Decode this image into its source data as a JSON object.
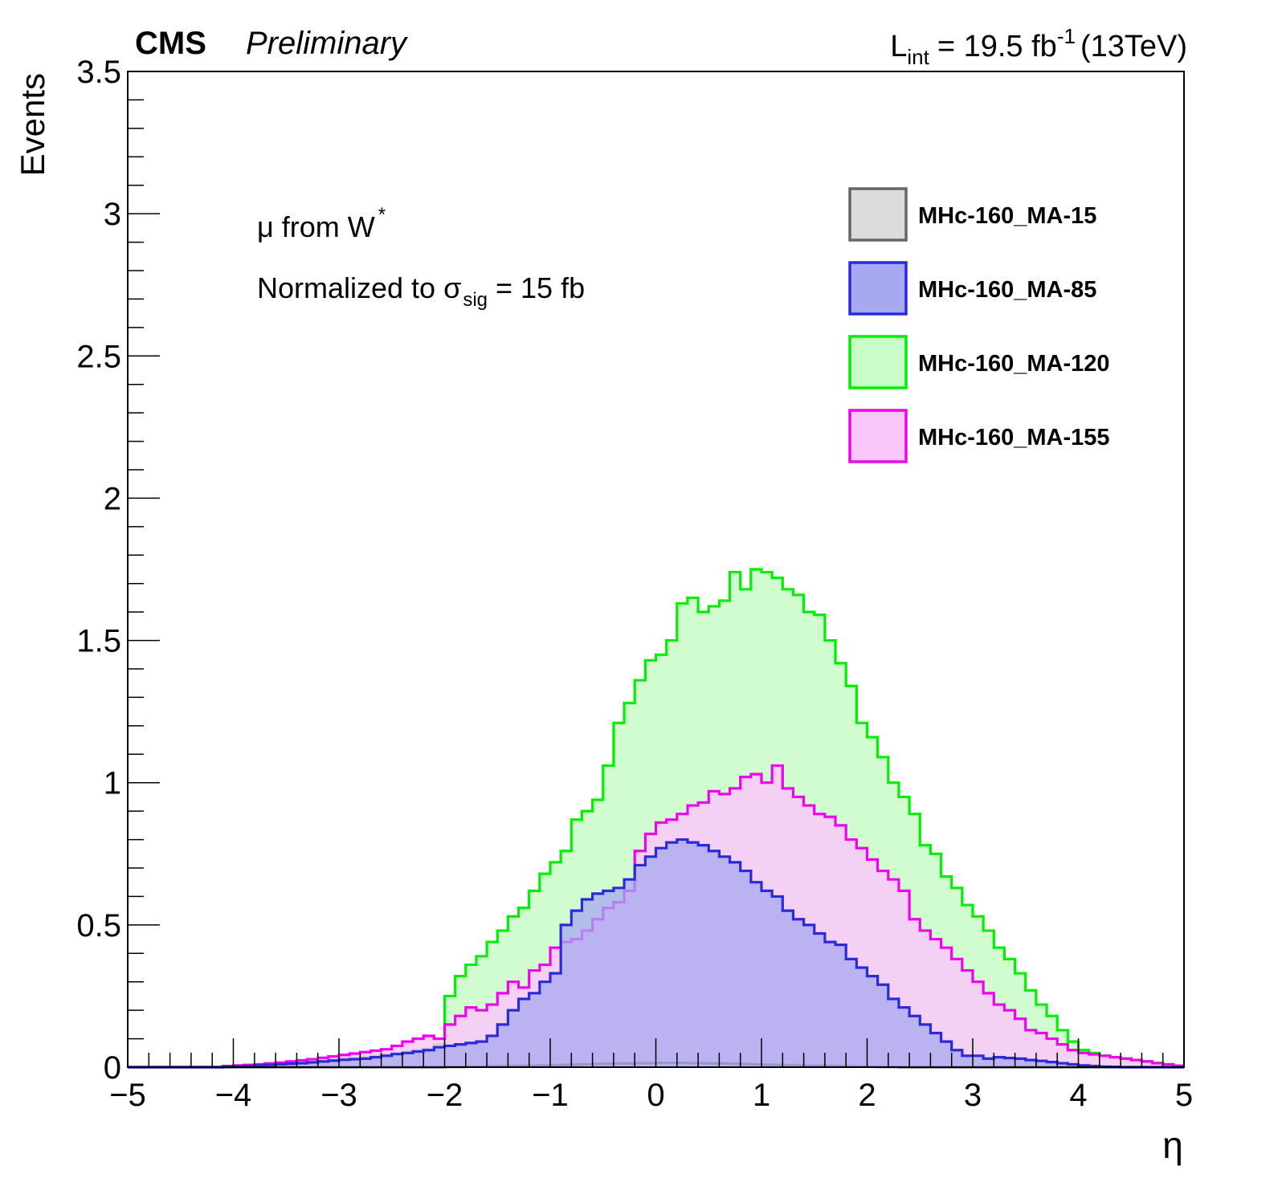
{
  "header": {
    "experiment": "CMS",
    "status": "Preliminary",
    "lumi_symbol": "L",
    "lumi_sub": "int",
    "lumi_value": "= 19.5 fb",
    "lumi_exp": "-1",
    "energy": "(13TeV)"
  },
  "annotations": {
    "line1_main": "μ from W",
    "line1_sup": "*",
    "line2_main": "Normalized to σ",
    "line2_sub": "sig",
    "line2_tail": "= 15 fb"
  },
  "chart_data": {
    "type": "histogram",
    "xlabel": "η",
    "ylabel": "Events",
    "xlim": [
      -5,
      5
    ],
    "ylim": [
      0,
      3.5
    ],
    "x_ticks": [
      -5,
      -4,
      -3,
      -2,
      -1,
      0,
      1,
      2,
      3,
      4,
      5
    ],
    "x_tick_labels": [
      "−5",
      "−4",
      "−3",
      "−2",
      "−1",
      "0",
      "1",
      "2",
      "3",
      "4",
      "5"
    ],
    "y_ticks": [
      0,
      0.5,
      1,
      1.5,
      2,
      2.5,
      3,
      3.5
    ],
    "y_tick_labels": [
      "0",
      "0.5",
      "1",
      "1.5",
      "2",
      "2.5",
      "3",
      "3.5"
    ],
    "bin_width": 0.1,
    "legend_position": "top-right",
    "series": [
      {
        "name": "MHc-160_MA-15",
        "line_color": "#666666",
        "fill_color": "#dcdcdc",
        "values": [
          0,
          0,
          0,
          0,
          0,
          0,
          0,
          0,
          0,
          0,
          0,
          0,
          0,
          0,
          0,
          0,
          0,
          0,
          0,
          0,
          0,
          0,
          0,
          0,
          0,
          0,
          0,
          0,
          0,
          0,
          0.001,
          0.001,
          0.002,
          0.002,
          0.003,
          0.004,
          0.004,
          0.005,
          0.005,
          0.006,
          0.007,
          0.008,
          0.009,
          0.01,
          0.011,
          0.012,
          0.013,
          0.013,
          0.014,
          0.014,
          0.015,
          0.015,
          0.015,
          0.014,
          0.014,
          0.013,
          0.013,
          0.012,
          0.011,
          0.01,
          0.009,
          0.008,
          0.007,
          0.006,
          0.005,
          0.005,
          0.004,
          0.004,
          0.003,
          0.002,
          0.002,
          0.001,
          0.001,
          0,
          0,
          0,
          0,
          0,
          0,
          0,
          0,
          0,
          0,
          0,
          0,
          0,
          0,
          0,
          0,
          0,
          0,
          0,
          0,
          0,
          0,
          0,
          0,
          0,
          0,
          0
        ]
      },
      {
        "name": "MHc-160_MA-85",
        "line_color": "#2a2ad8",
        "fill_color": "#a8a8f0",
        "values": [
          0,
          0,
          0,
          0,
          0,
          0,
          0,
          0,
          0,
          0.002,
          0.003,
          0.004,
          0.006,
          0.008,
          0.01,
          0.012,
          0.014,
          0.017,
          0.02,
          0.023,
          0.026,
          0.028,
          0.03,
          0.035,
          0.04,
          0.046,
          0.05,
          0.055,
          0.06,
          0.07,
          0.075,
          0.08,
          0.085,
          0.09,
          0.11,
          0.15,
          0.2,
          0.24,
          0.26,
          0.3,
          0.33,
          0.5,
          0.55,
          0.59,
          0.61,
          0.62,
          0.63,
          0.66,
          0.71,
          0.74,
          0.77,
          0.79,
          0.8,
          0.79,
          0.78,
          0.76,
          0.74,
          0.72,
          0.69,
          0.65,
          0.62,
          0.6,
          0.55,
          0.52,
          0.5,
          0.47,
          0.44,
          0.43,
          0.38,
          0.35,
          0.32,
          0.29,
          0.24,
          0.21,
          0.18,
          0.15,
          0.12,
          0.09,
          0.06,
          0.04,
          0.04,
          0.03,
          0.035,
          0.032,
          0.03,
          0.025,
          0.022,
          0.018,
          0.014,
          0.01,
          0.006,
          0.004,
          0.002,
          0.001,
          0,
          0,
          0,
          0,
          0,
          0
        ]
      },
      {
        "name": "MHc-160_MA-120",
        "line_color": "#00ee00",
        "fill_color": "#c8fcc8",
        "values": [
          0,
          0,
          0,
          0,
          0,
          0,
          0,
          0,
          0,
          0,
          0.002,
          0.003,
          0.005,
          0.007,
          0.01,
          0.012,
          0.015,
          0.018,
          0.021,
          0.025,
          0.029,
          0.032,
          0.036,
          0.04,
          0.045,
          0.05,
          0.055,
          0.06,
          0.065,
          0.08,
          0.25,
          0.32,
          0.36,
          0.39,
          0.44,
          0.48,
          0.53,
          0.56,
          0.62,
          0.68,
          0.72,
          0.76,
          0.87,
          0.9,
          0.94,
          1.06,
          1.21,
          1.28,
          1.36,
          1.43,
          1.45,
          1.5,
          1.63,
          1.65,
          1.6,
          1.62,
          1.64,
          1.74,
          1.68,
          1.75,
          1.74,
          1.72,
          1.68,
          1.66,
          1.6,
          1.59,
          1.5,
          1.42,
          1.34,
          1.21,
          1.16,
          1.09,
          1.0,
          0.95,
          0.89,
          0.78,
          0.75,
          0.67,
          0.63,
          0.57,
          0.53,
          0.48,
          0.42,
          0.38,
          0.33,
          0.27,
          0.22,
          0.18,
          0.13,
          0.09,
          0.06,
          0.05,
          0.04,
          0.035,
          0.03,
          0.025,
          0.02,
          0.015,
          0.01,
          0.005
        ]
      },
      {
        "name": "MHc-160_MA-155",
        "line_color": "#ee00ee",
        "fill_color": "#fac8fa",
        "values": [
          0,
          0,
          0,
          0,
          0,
          0,
          0,
          0,
          0,
          0.004,
          0.006,
          0.008,
          0.01,
          0.013,
          0.016,
          0.02,
          0.024,
          0.028,
          0.033,
          0.038,
          0.043,
          0.048,
          0.053,
          0.058,
          0.063,
          0.075,
          0.09,
          0.1,
          0.11,
          0.1,
          0.15,
          0.18,
          0.21,
          0.2,
          0.22,
          0.26,
          0.3,
          0.28,
          0.34,
          0.36,
          0.42,
          0.44,
          0.45,
          0.48,
          0.52,
          0.56,
          0.58,
          0.62,
          0.76,
          0.82,
          0.86,
          0.87,
          0.89,
          0.92,
          0.93,
          0.97,
          0.96,
          0.98,
          1.02,
          1.03,
          1.0,
          1.06,
          0.98,
          0.95,
          0.92,
          0.89,
          0.88,
          0.85,
          0.8,
          0.77,
          0.73,
          0.69,
          0.66,
          0.62,
          0.52,
          0.48,
          0.45,
          0.42,
          0.38,
          0.34,
          0.3,
          0.26,
          0.22,
          0.2,
          0.17,
          0.13,
          0.12,
          0.1,
          0.08,
          0.06,
          0.05,
          0.045,
          0.04,
          0.035,
          0.03,
          0.025,
          0.02,
          0.014,
          0.01,
          0.005
        ]
      }
    ]
  }
}
